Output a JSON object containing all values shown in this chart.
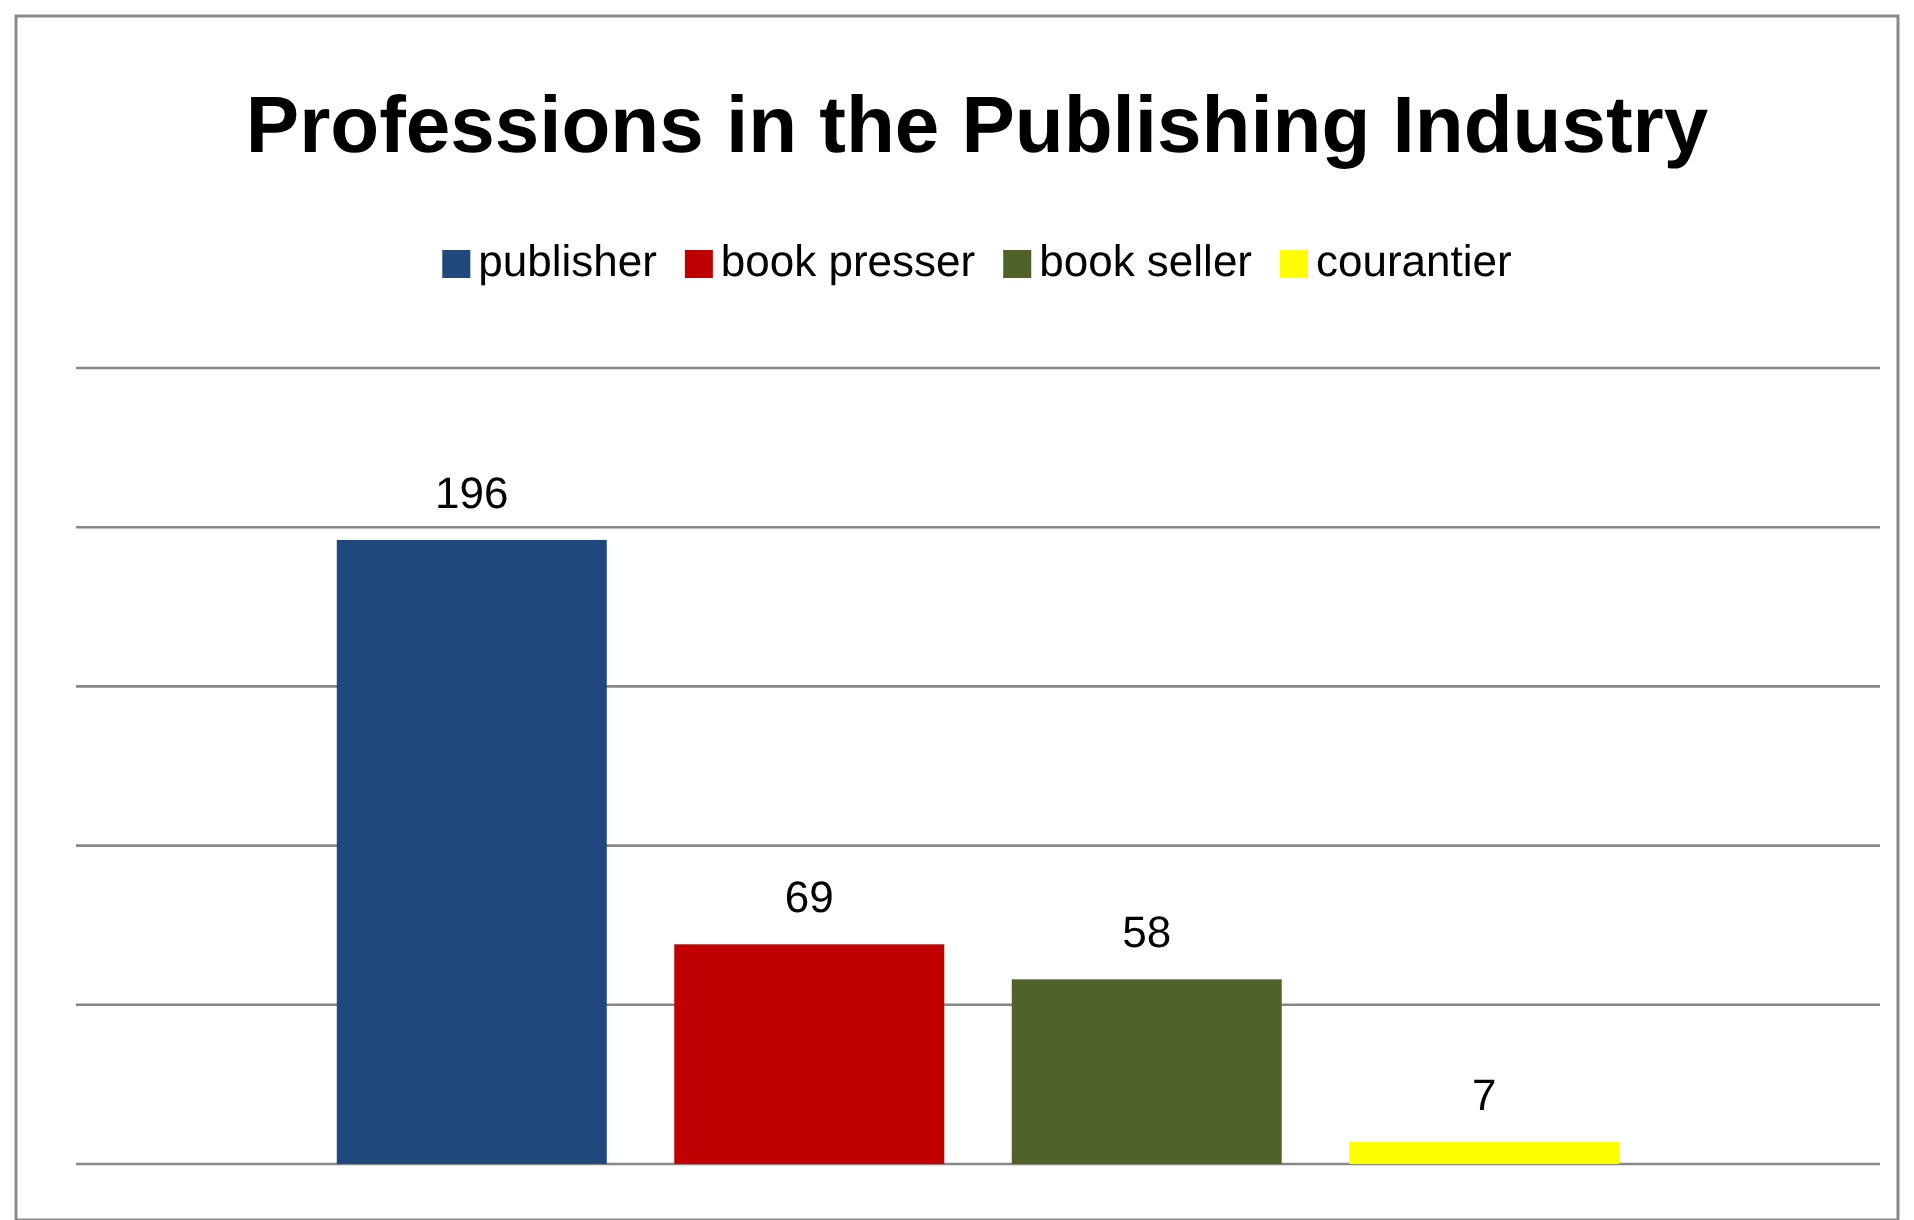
{
  "chart_data": {
    "type": "bar",
    "title": "Professions in the Publishing Industry",
    "categories": [
      null
    ],
    "series": [
      {
        "name": "publisher",
        "color": "#1f497d",
        "values": [
          196
        ]
      },
      {
        "name": "book presser",
        "color": "#c00000",
        "values": [
          69
        ]
      },
      {
        "name": "book seller",
        "color": "#4f6228",
        "values": [
          58
        ]
      },
      {
        "name": "courantier",
        "color": "#ffff00",
        "values": [
          7
        ]
      }
    ],
    "ylim": [
      0,
      250
    ],
    "yticks": [
      {
        "value": 0,
        "label": null
      },
      {
        "value": 50,
        "label": null
      },
      {
        "value": 100,
        "label": null
      },
      {
        "value": 150,
        "label": null
      },
      {
        "value": 200,
        "label": null
      },
      {
        "value": 250,
        "label": null
      }
    ],
    "grid": "y",
    "legend": "top",
    "data_labels": true
  }
}
